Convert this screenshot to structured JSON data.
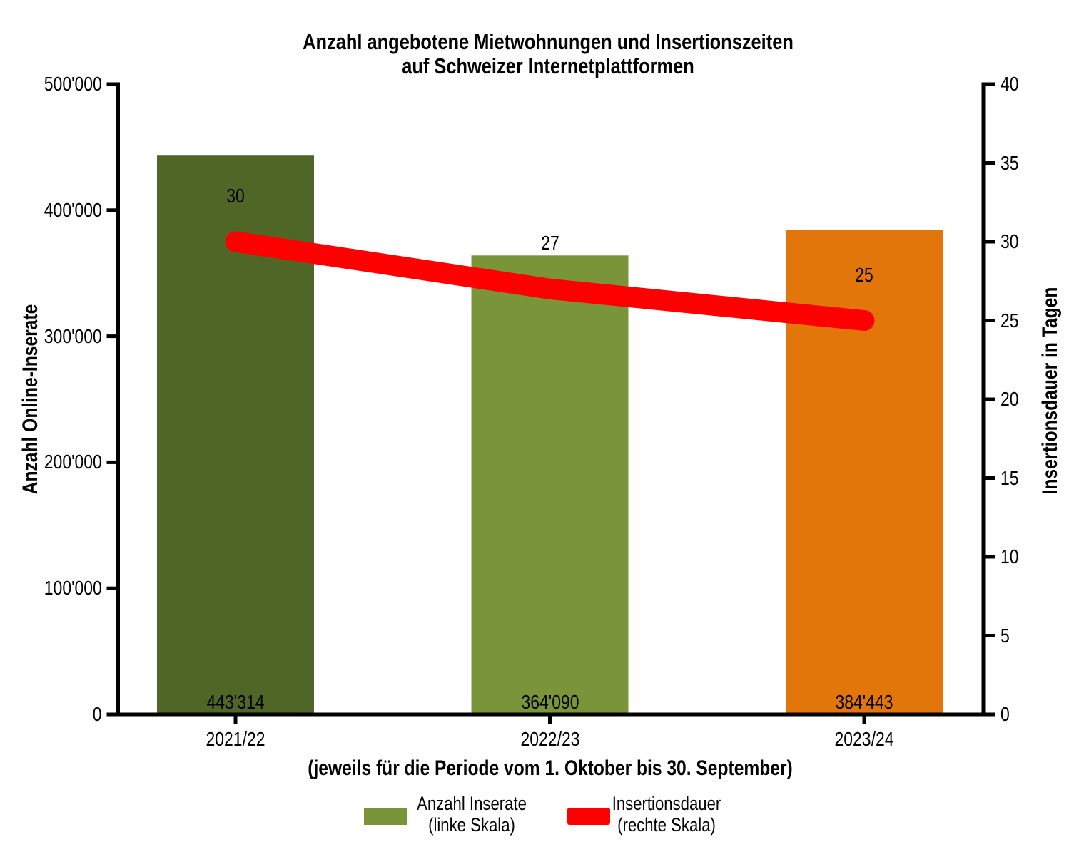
{
  "chart_data": {
    "type": "bar+line",
    "title": {
      "line1": "Anzahl angebotene Mietwohnungen und Insertionszeiten",
      "line2": "auf Schweizer Internetplattformen"
    },
    "categories": [
      "2021/22",
      "2022/23",
      "2023/24"
    ],
    "bars": {
      "name": "Anzahl Inserate (linke Skala)",
      "axis": "left",
      "values": [
        443314,
        364090,
        384443
      ],
      "value_labels": [
        "443'314",
        "364'090",
        "384'443"
      ],
      "colors": [
        "#4f6626",
        "#7a9439",
        "#e2760b"
      ]
    },
    "line": {
      "name": "Insertionsdauer (rechte Skala)",
      "axis": "right",
      "values": [
        30,
        27,
        25
      ],
      "value_labels": [
        "30",
        "27",
        "25"
      ],
      "color": "#ff0000"
    },
    "left_axis": {
      "label": "Anzahl Online-Inserate",
      "range": [
        0,
        500000
      ],
      "tick_labels": [
        "0",
        "100'000",
        "200'000",
        "300'000",
        "400'000",
        "500'000"
      ]
    },
    "right_axis": {
      "label": "Insertionsdauer in Tagen",
      "range": [
        0,
        40
      ],
      "tick_labels": [
        "0",
        "5",
        "10",
        "15",
        "20",
        "25",
        "30",
        "35",
        "40"
      ]
    },
    "x_axis": {
      "label": "(jeweils für die Periode vom 1. Oktober bis 30. September)"
    },
    "legend": [
      {
        "line1": "Anzahl Inserate",
        "line2": "(linke Skala)",
        "color": "#7a9439"
      },
      {
        "line1": "Insertionsdauer",
        "line2": "(rechte Skala)",
        "color": "#ff0000"
      }
    ],
    "grid": false,
    "background": "#ffffff"
  }
}
